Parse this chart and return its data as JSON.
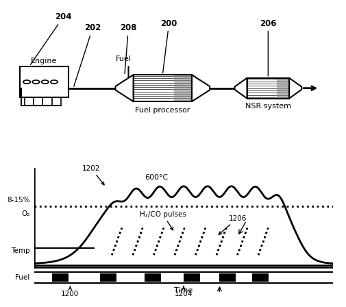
{
  "bg_color": "#ffffff",
  "diagram": {
    "engine_label": "Engine",
    "fuel_label": "Fuel",
    "fp_label": "Fuel processor",
    "nsr_label": "NSR system",
    "ref_200": "200",
    "ref_202": "202",
    "ref_204": "204",
    "ref_206": "206",
    "ref_208": "208"
  },
  "graph": {
    "temp_label": "600°C",
    "o2_label": "8-15%",
    "o2_sub": "O₂",
    "y_temp": "Temp",
    "y_fuel": "Fuel",
    "x_time": "Time",
    "annotation_1202": "1202",
    "annotation_1206": "1206",
    "ref_1200": "1200",
    "ref_1204": "1204",
    "pulses_label": "H₂/CO pulses"
  }
}
